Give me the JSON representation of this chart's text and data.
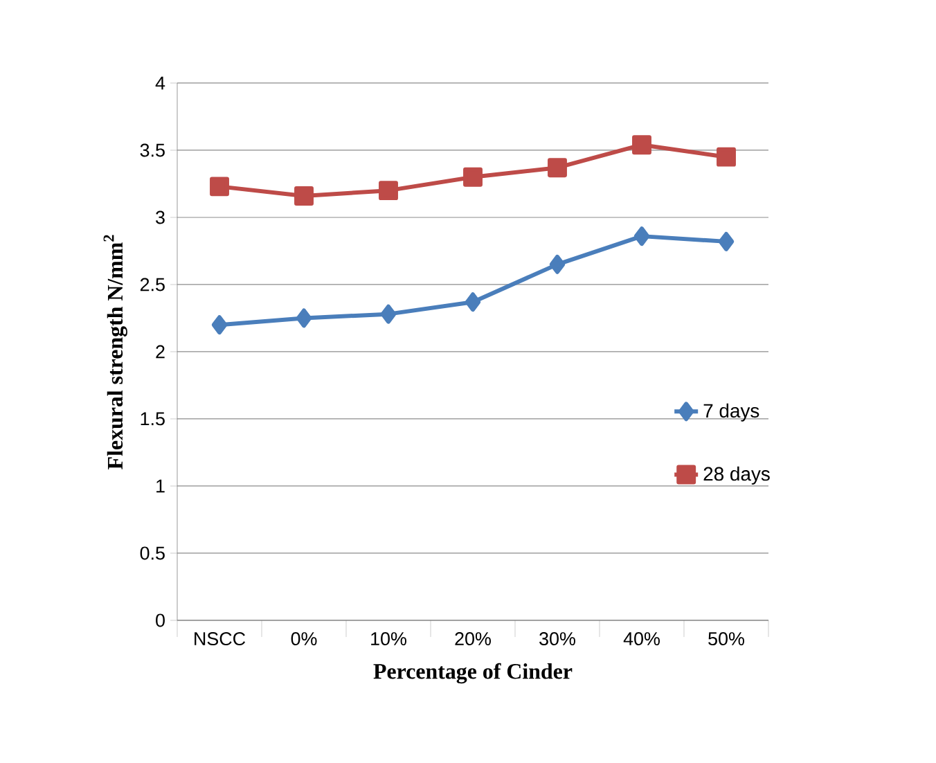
{
  "chart_data": {
    "type": "line",
    "xlabel": "Percentage of Cinder",
    "ylabel": "Flexural strength N/mm$^{2}$",
    "categories": [
      "NSCC",
      "0%",
      "10%",
      "20%",
      "30%",
      "40%",
      "50%"
    ],
    "series": [
      {
        "name": "7 days",
        "color": "#4a7ebb",
        "marker": "diamond",
        "values": [
          2.2,
          2.25,
          2.28,
          2.37,
          2.65,
          2.86,
          2.82
        ]
      },
      {
        "name": "28 days",
        "color": "#be4b48",
        "marker": "square",
        "values": [
          3.23,
          3.16,
          3.2,
          3.3,
          3.37,
          3.54,
          3.45
        ]
      }
    ],
    "ylim": [
      0,
      4
    ],
    "yticks": [
      0,
      0.5,
      1,
      1.5,
      2,
      2.5,
      3,
      3.5,
      4
    ],
    "grid": "y",
    "legend": "right",
    "line_style": "solid"
  }
}
